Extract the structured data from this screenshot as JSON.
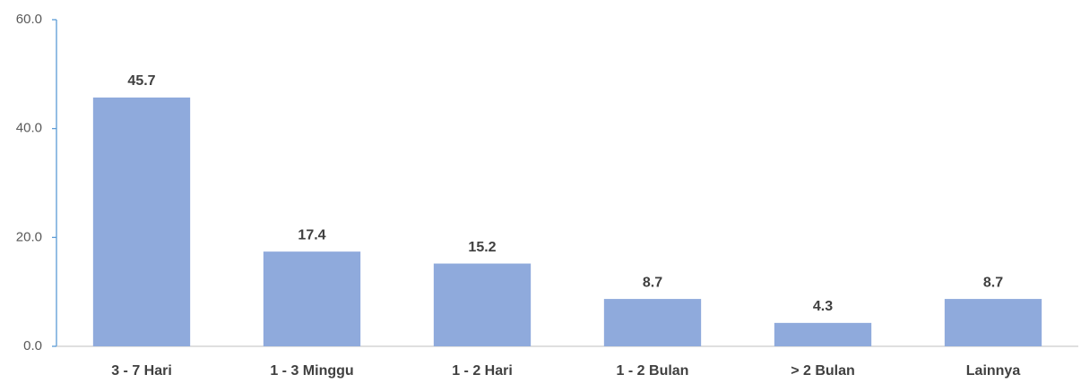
{
  "chart_data": {
    "type": "bar",
    "categories": [
      "3 - 7 Hari",
      "1 - 3 Minggu",
      "1 - 2 Hari",
      "1 - 2 Bulan",
      "> 2 Bulan",
      "Lainnya"
    ],
    "values": [
      45.7,
      17.4,
      15.2,
      8.7,
      4.3,
      8.7
    ],
    "color": "#8faadc",
    "ylim": [
      0,
      60
    ],
    "yticks": [
      {
        "value": 0,
        "label": "0.0"
      },
      {
        "value": 20,
        "label": "20.0"
      },
      {
        "value": 40,
        "label": "40.0"
      },
      {
        "value": 60,
        "label": "60.0"
      }
    ],
    "grid": false
  }
}
